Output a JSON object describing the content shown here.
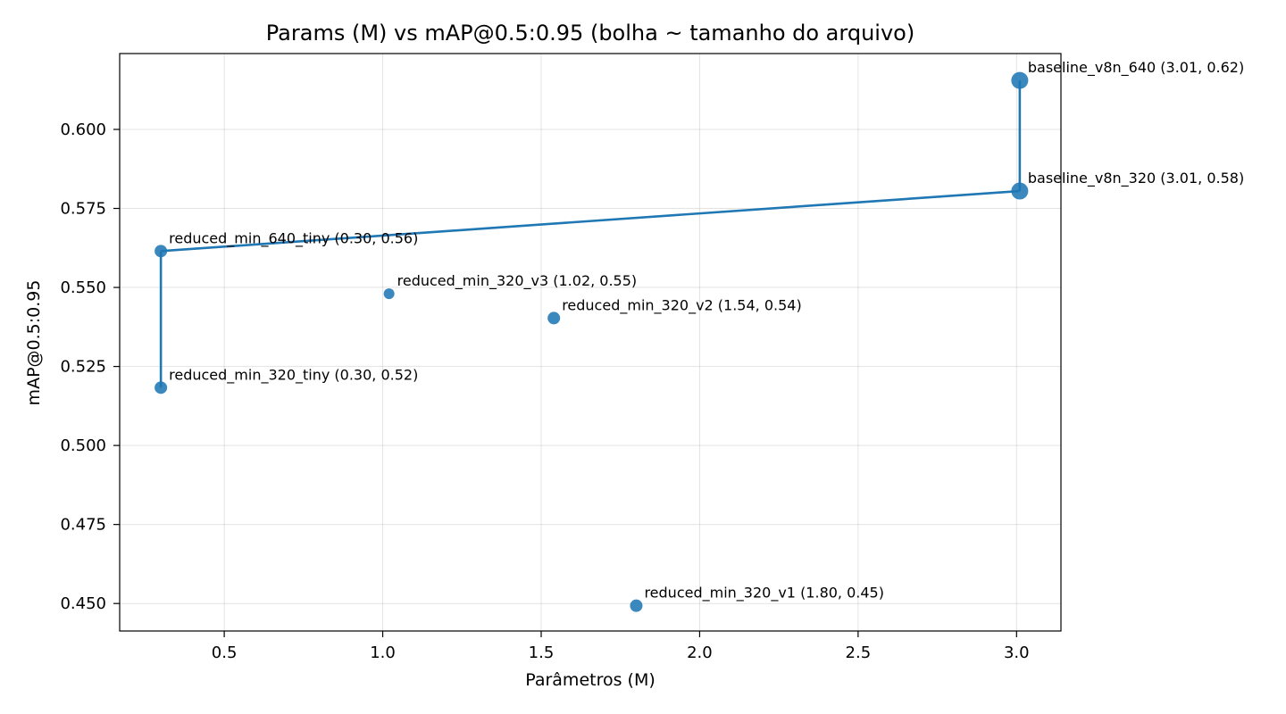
{
  "chart_data": {
    "type": "scatter",
    "title": "Params (M) vs mAP@0.5:0.95 (bolha ~ tamanho do arquivo)",
    "xlabel": "Parâmetros (M)",
    "ylabel": "mAP@0.5:0.95",
    "xlim": [
      0.17,
      3.14
    ],
    "ylim": [
      0.4413,
      0.624
    ],
    "xticks": [
      0.5,
      1.0,
      1.5,
      2.0,
      2.5,
      3.0
    ],
    "xtick_labels": [
      "0.5",
      "1.0",
      "1.5",
      "2.0",
      "2.5",
      "3.0"
    ],
    "yticks": [
      0.45,
      0.475,
      0.5,
      0.525,
      0.55,
      0.575,
      0.6
    ],
    "ytick_labels": [
      "0.450",
      "0.475",
      "0.500",
      "0.525",
      "0.550",
      "0.575",
      "0.600"
    ],
    "grid": true,
    "color": "#1f77b4",
    "points": [
      {
        "name": "baseline_v8n_640",
        "x": 3.01,
        "y": 0.6155,
        "size": 3,
        "label": "baseline_v8n_640 (3.01, 0.62)"
      },
      {
        "name": "baseline_v8n_320",
        "x": 3.01,
        "y": 0.5805,
        "size": 3,
        "label": "baseline_v8n_320 (3.01, 0.58)"
      },
      {
        "name": "reduced_min_640_tiny",
        "x": 0.3,
        "y": 0.5615,
        "size": 2,
        "label": "reduced_min_640_tiny (0.30, 0.56)"
      },
      {
        "name": "reduced_min_320_v3",
        "x": 1.02,
        "y": 0.548,
        "size": 1,
        "label": "reduced_min_320_v3 (1.02, 0.55)"
      },
      {
        "name": "reduced_min_320_v2",
        "x": 1.54,
        "y": 0.5403,
        "size": 2,
        "label": "reduced_min_320_v2 (1.54, 0.54)"
      },
      {
        "name": "reduced_min_320_tiny",
        "x": 0.3,
        "y": 0.5183,
        "size": 2,
        "label": "reduced_min_320_tiny (0.30, 0.52)"
      },
      {
        "name": "reduced_min_320_v1",
        "x": 1.8,
        "y": 0.4493,
        "size": 2,
        "label": "reduced_min_320_v1 (1.80, 0.45)"
      }
    ],
    "connections": [
      [
        "reduced_min_320_tiny",
        "reduced_min_640_tiny"
      ],
      [
        "reduced_min_640_tiny",
        "baseline_v8n_320"
      ],
      [
        "baseline_v8n_320",
        "baseline_v8n_640"
      ]
    ]
  }
}
